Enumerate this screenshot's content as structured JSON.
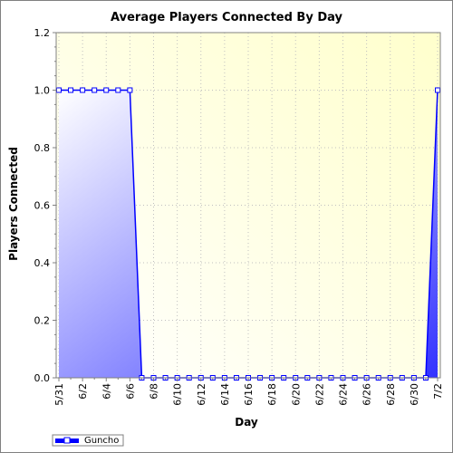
{
  "chart_data": {
    "type": "area",
    "title": "Average Players Connected By Day",
    "xlabel": "Day",
    "ylabel": "Players Connected",
    "ylim": [
      0,
      1.2
    ],
    "yticks": [
      "0.0",
      "0.2",
      "0.4",
      "0.6",
      "0.8",
      "1.0",
      "1.2"
    ],
    "x": [
      "5/31",
      "6/1",
      "6/2",
      "6/3",
      "6/4",
      "6/5",
      "6/6",
      "6/7",
      "6/8",
      "6/9",
      "6/10",
      "6/11",
      "6/12",
      "6/13",
      "6/14",
      "6/15",
      "6/16",
      "6/17",
      "6/18",
      "6/19",
      "6/20",
      "6/21",
      "6/22",
      "6/23",
      "6/24",
      "6/25",
      "6/26",
      "6/27",
      "6/28",
      "6/29",
      "6/30",
      "7/1",
      "7/2"
    ],
    "xtick_labels": [
      "5/31",
      "6/2",
      "6/4",
      "6/6",
      "6/8",
      "6/10",
      "6/12",
      "6/14",
      "6/16",
      "6/18",
      "6/20",
      "6/22",
      "6/24",
      "6/26",
      "6/28",
      "6/30",
      "7/2"
    ],
    "series": [
      {
        "name": "Guncho",
        "color": "#0000ff",
        "values": [
          1,
          1,
          1,
          1,
          1,
          1,
          1,
          0,
          0,
          0,
          0,
          0,
          0,
          0,
          0,
          0,
          0,
          0,
          0,
          0,
          0,
          0,
          0,
          0,
          0,
          0,
          0,
          0,
          0,
          0,
          0,
          0,
          1
        ]
      }
    ],
    "grid": true,
    "legend_position": "bottom-left"
  }
}
